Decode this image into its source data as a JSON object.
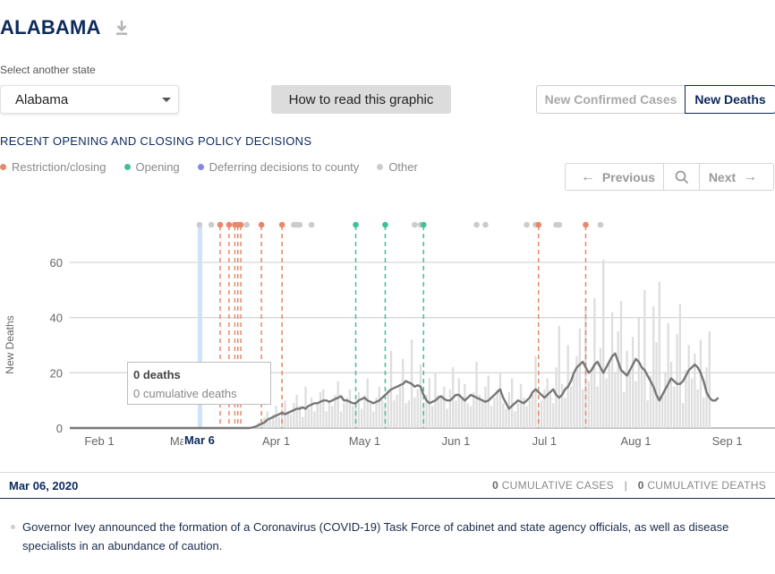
{
  "header": {
    "state_title": "ALABAMA",
    "download_icon": "download-icon"
  },
  "selector": {
    "label": "Select another state",
    "value": "Alabama"
  },
  "how_button": {
    "label": "How to read this graphic"
  },
  "metric_toggle": {
    "confirmed_label": "New Confirmed Cases",
    "deaths_label": "New Deaths",
    "active": "New Deaths"
  },
  "policy": {
    "heading": "RECENT OPENING AND CLOSING POLICY DECISIONS",
    "legend": [
      {
        "label": "Restriction/closing",
        "color": "#e8876a"
      },
      {
        "label": "Opening",
        "color": "#3fbf9a"
      },
      {
        "label": "Deferring decisions to county",
        "color": "#8585ea"
      },
      {
        "label": "Other",
        "color": "#cccccc"
      }
    ]
  },
  "nav": {
    "previous_label": "Previous",
    "next_label": "Next",
    "search_icon": "search-icon"
  },
  "chart_data": {
    "type": "bar",
    "ylabel": "New Deaths",
    "y_ticks": [
      0,
      20,
      40,
      60
    ],
    "ylim": [
      0,
      75
    ],
    "x_ticks": [
      {
        "label": "Feb 1",
        "date": "2020-02-01"
      },
      {
        "label": "Mar 1",
        "date": "2020-03-01"
      },
      {
        "label": "Apr 1",
        "date": "2020-04-01"
      },
      {
        "label": "May 1",
        "date": "2020-05-01"
      },
      {
        "label": "Jun 1",
        "date": "2020-06-01"
      },
      {
        "label": "Jul 1",
        "date": "2020-07-01"
      },
      {
        "label": "Aug 1",
        "date": "2020-08-01"
      },
      {
        "label": "Sep 1",
        "date": "2020-09-01"
      }
    ],
    "x_range": [
      "2020-01-22",
      "2020-09-16"
    ],
    "highlight": {
      "label": "Mar 6",
      "date": "2020-03-06"
    },
    "series": [
      {
        "kind": "bars",
        "color": "#dedede",
        "start_date": "2020-03-25",
        "values": [
          1,
          2,
          3,
          4,
          6,
          3,
          5,
          8,
          4,
          7,
          10,
          6,
          5,
          9,
          12,
          8,
          4,
          15,
          7,
          11,
          6,
          9,
          13,
          14,
          6,
          10,
          8,
          12,
          17,
          6,
          9,
          11,
          14,
          8,
          10,
          13,
          7,
          12,
          18,
          9,
          6,
          11,
          15,
          10,
          8,
          14,
          28,
          10,
          12,
          16,
          25,
          9,
          10,
          32,
          11,
          14,
          23,
          9,
          12,
          18,
          8,
          20,
          12,
          11,
          15,
          7,
          14,
          22,
          10,
          18,
          11,
          16,
          9,
          8,
          13,
          24,
          12,
          10,
          15,
          19,
          8,
          11,
          14,
          20,
          9,
          7,
          13,
          18,
          6,
          9,
          16,
          11,
          8,
          10,
          12,
          26,
          7,
          10,
          14,
          18,
          12,
          9,
          22,
          37,
          16,
          11,
          30,
          15,
          19,
          26,
          36,
          14,
          44,
          17,
          22,
          47,
          15,
          29,
          61,
          18,
          24,
          42,
          20,
          35,
          46,
          13,
          28,
          21,
          33,
          17,
          40,
          22,
          50,
          10,
          19,
          44,
          31,
          53,
          12,
          20,
          38,
          24,
          15,
          34,
          45,
          9,
          21,
          30,
          18,
          27,
          14,
          32,
          11,
          22,
          35
        ]
      },
      {
        "kind": "line",
        "color": "#777777",
        "name": "7-day average",
        "start_date": "2020-03-25",
        "values": [
          0.5,
          1,
          1.5,
          2,
          3,
          3.5,
          4,
          4.5,
          5,
          5.5,
          5,
          5.5,
          6,
          6.5,
          7,
          7,
          7.5,
          7,
          8,
          8.5,
          9,
          9,
          9.5,
          10,
          10,
          9.5,
          10,
          10.5,
          11,
          11.5,
          10,
          10,
          9.5,
          9,
          9,
          10,
          10.5,
          11,
          10,
          9.5,
          9,
          9.5,
          10,
          11,
          12,
          13,
          14,
          14.5,
          15,
          15.5,
          16,
          17,
          16.5,
          16,
          15,
          15.5,
          15,
          12,
          10,
          9,
          9.5,
          10,
          11,
          11.5,
          10.5,
          10,
          10,
          11,
          12,
          12,
          11,
          10,
          11,
          12,
          11.5,
          11,
          10.5,
          10,
          9.5,
          10,
          11,
          12,
          13,
          14,
          11,
          9,
          7,
          8,
          9,
          10,
          9.5,
          9,
          10,
          11,
          13,
          14,
          13,
          12,
          11,
          12,
          13,
          14,
          12,
          11,
          12,
          14,
          15,
          17,
          20,
          22,
          23,
          24,
          22,
          20,
          21,
          23,
          24,
          22,
          20,
          22,
          24,
          26,
          27,
          24,
          21,
          20,
          19,
          21,
          23,
          25,
          24,
          22,
          21,
          19,
          17,
          15,
          12,
          10,
          12,
          14,
          16,
          18,
          17,
          16,
          16,
          17,
          19,
          21,
          22,
          23,
          22,
          20,
          17,
          13,
          11,
          10,
          10,
          11
        ]
      }
    ],
    "policy_events": [
      {
        "date": "2020-03-06",
        "type": "other"
      },
      {
        "date": "2020-03-10",
        "type": "other"
      },
      {
        "date": "2020-03-13",
        "type": "restriction"
      },
      {
        "date": "2020-03-16",
        "type": "restriction"
      },
      {
        "date": "2020-03-18",
        "type": "restriction"
      },
      {
        "date": "2020-03-19",
        "type": "restriction"
      },
      {
        "date": "2020-03-20",
        "type": "restriction"
      },
      {
        "date": "2020-03-22",
        "type": "other"
      },
      {
        "date": "2020-03-27",
        "type": "restriction"
      },
      {
        "date": "2020-04-03",
        "type": "restriction"
      },
      {
        "date": "2020-04-07",
        "type": "other"
      },
      {
        "date": "2020-04-08",
        "type": "other"
      },
      {
        "date": "2020-04-09",
        "type": "other"
      },
      {
        "date": "2020-04-13",
        "type": "other"
      },
      {
        "date": "2020-04-28",
        "type": "opening"
      },
      {
        "date": "2020-05-08",
        "type": "opening"
      },
      {
        "date": "2020-05-18",
        "type": "other"
      },
      {
        "date": "2020-05-20",
        "type": "other"
      },
      {
        "date": "2020-05-21",
        "type": "opening"
      },
      {
        "date": "2020-06-08",
        "type": "other"
      },
      {
        "date": "2020-06-11",
        "type": "other"
      },
      {
        "date": "2020-06-25",
        "type": "other"
      },
      {
        "date": "2020-06-28",
        "type": "other"
      },
      {
        "date": "2020-06-29",
        "type": "restriction"
      },
      {
        "date": "2020-07-05",
        "type": "other"
      },
      {
        "date": "2020-07-06",
        "type": "other"
      },
      {
        "date": "2020-07-15",
        "type": "restriction"
      },
      {
        "date": "2020-07-20",
        "type": "other"
      }
    ]
  },
  "tooltip": {
    "deaths": "0 deaths",
    "cumulative": "0 cumulative deaths"
  },
  "info_bar": {
    "date": "Mar 06, 2020",
    "cum_cases_value": "0",
    "cum_cases_label": "CUMULATIVE CASES",
    "separator": "|",
    "cum_deaths_value": "0",
    "cum_deaths_label": "CUMULATIVE DEATHS"
  },
  "event": {
    "text": "Governor Ivey announced the formation of a Coronavirus (COVID-19) Task Force of cabinet and state agency officials, as well as disease specialists in an abundance of caution."
  }
}
